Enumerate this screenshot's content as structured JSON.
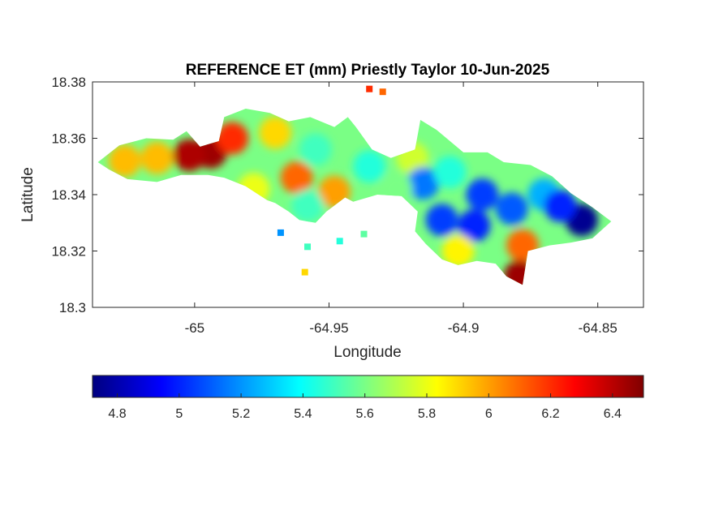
{
  "chart_data": {
    "type": "heatmap",
    "title": "REFERENCE ET (mm) Priestly Taylor 10-Jun-2025",
    "xlabel": "Longitude",
    "ylabel": "Latitude",
    "xlim": [
      -65.038,
      -64.833
    ],
    "ylim": [
      18.3,
      18.38
    ],
    "xticks": [
      -65,
      -64.95,
      -64.9,
      -64.85
    ],
    "xtick_labels": [
      "-65",
      "-64.95",
      "-64.9",
      "-64.85"
    ],
    "yticks": [
      18.3,
      18.32,
      18.34,
      18.36,
      18.38
    ],
    "ytick_labels": [
      "18.3",
      "18.32",
      "18.34",
      "18.36",
      "18.38"
    ],
    "colorbar": {
      "colormap": "jet",
      "clim": [
        4.72,
        6.5
      ],
      "ticks": [
        4.8,
        5.0,
        5.2,
        5.4,
        5.6,
        5.8,
        6.0,
        6.2,
        6.4
      ],
      "tick_labels": [
        "4.8",
        "5",
        "5.2",
        "5.4",
        "5.6",
        "5.8",
        "6",
        "6.2",
        "6.4"
      ],
      "placement": "bottom"
    },
    "island_outline_lonlat": [
      [
        -65.036,
        18.3515
      ],
      [
        -65.028,
        18.3575
      ],
      [
        -65.018,
        18.36
      ],
      [
        -65.008,
        18.3595
      ],
      [
        -65.003,
        18.3625
      ],
      [
        -64.998,
        18.357
      ],
      [
        -64.991,
        18.359
      ],
      [
        -64.989,
        18.3675
      ],
      [
        -64.981,
        18.3705
      ],
      [
        -64.972,
        18.369
      ],
      [
        -64.965,
        18.366
      ],
      [
        -64.957,
        18.3675
      ],
      [
        -64.948,
        18.364
      ],
      [
        -64.943,
        18.3675
      ],
      [
        -64.94,
        18.364
      ],
      [
        -64.934,
        18.356
      ],
      [
        -64.927,
        18.353
      ],
      [
        -64.918,
        18.356
      ],
      [
        -64.916,
        18.3665
      ],
      [
        -64.91,
        18.363
      ],
      [
        -64.9,
        18.355
      ],
      [
        -64.891,
        18.355
      ],
      [
        -64.885,
        18.3515
      ],
      [
        -64.875,
        18.3505
      ],
      [
        -64.867,
        18.3465
      ],
      [
        -64.86,
        18.3405
      ],
      [
        -64.852,
        18.3355
      ],
      [
        -64.845,
        18.3305
      ],
      [
        -64.852,
        18.3245
      ],
      [
        -64.86,
        18.323
      ],
      [
        -64.868,
        18.322
      ],
      [
        -64.876,
        18.32
      ],
      [
        -64.878,
        18.308
      ],
      [
        -64.884,
        18.311
      ],
      [
        -64.888,
        18.3155
      ],
      [
        -64.895,
        18.3165
      ],
      [
        -64.902,
        18.315
      ],
      [
        -64.908,
        18.317
      ],
      [
        -64.914,
        18.3225
      ],
      [
        -64.918,
        18.327
      ],
      [
        -64.917,
        18.334
      ],
      [
        -64.923,
        18.3395
      ],
      [
        -64.932,
        18.34
      ],
      [
        -64.941,
        18.3375
      ],
      [
        -64.944,
        18.339
      ],
      [
        -64.951,
        18.334
      ],
      [
        -64.955,
        18.33
      ],
      [
        -64.961,
        18.331
      ],
      [
        -64.965,
        18.334
      ],
      [
        -64.97,
        18.337
      ],
      [
        -64.973,
        18.338
      ],
      [
        -64.981,
        18.343
      ],
      [
        -64.989,
        18.346
      ],
      [
        -64.995,
        18.347
      ],
      [
        -65.005,
        18.347
      ],
      [
        -65.014,
        18.3445
      ],
      [
        -65.025,
        18.3455
      ],
      [
        -65.032,
        18.349
      ],
      [
        -65.036,
        18.3515
      ]
    ],
    "value_centers": [
      {
        "lon": -64.994,
        "lat": 18.355,
        "value": 6.45
      },
      {
        "lon": -65.002,
        "lat": 18.354,
        "value": 6.42
      },
      {
        "lon": -64.986,
        "lat": 18.36,
        "value": 6.2
      },
      {
        "lon": -65.014,
        "lat": 18.353,
        "value": 5.95
      },
      {
        "lon": -65.026,
        "lat": 18.352,
        "value": 5.95
      },
      {
        "lon": -64.962,
        "lat": 18.346,
        "value": 6.1
      },
      {
        "lon": -64.97,
        "lat": 18.362,
        "value": 5.9
      },
      {
        "lon": -64.948,
        "lat": 18.341,
        "value": 6.0
      },
      {
        "lon": -64.955,
        "lat": 18.356,
        "value": 5.5
      },
      {
        "lon": -64.935,
        "lat": 18.35,
        "value": 5.45
      },
      {
        "lon": -64.919,
        "lat": 18.353,
        "value": 5.75
      },
      {
        "lon": -64.915,
        "lat": 18.344,
        "value": 5.15
      },
      {
        "lon": -64.905,
        "lat": 18.348,
        "value": 5.45
      },
      {
        "lon": -64.893,
        "lat": 18.34,
        "value": 5.05
      },
      {
        "lon": -64.896,
        "lat": 18.329,
        "value": 5.0
      },
      {
        "lon": -64.908,
        "lat": 18.331,
        "value": 5.05
      },
      {
        "lon": -64.882,
        "lat": 18.335,
        "value": 5.1
      },
      {
        "lon": -64.87,
        "lat": 18.34,
        "value": 5.25
      },
      {
        "lon": -64.856,
        "lat": 18.331,
        "value": 4.75
      },
      {
        "lon": -64.864,
        "lat": 18.336,
        "value": 5.0
      },
      {
        "lon": -64.902,
        "lat": 18.32,
        "value": 5.85
      },
      {
        "lon": -64.878,
        "lat": 18.322,
        "value": 6.1
      },
      {
        "lon": -64.879,
        "lat": 18.311,
        "value": 6.45
      },
      {
        "lon": -64.925,
        "lat": 18.342,
        "value": 5.6
      },
      {
        "lon": -64.958,
        "lat": 18.336,
        "value": 5.5
      },
      {
        "lon": -64.978,
        "lat": 18.342,
        "value": 5.8
      }
    ],
    "islets_lonlat": [
      {
        "lon": -64.958,
        "lat": 18.3215,
        "value": 5.5
      },
      {
        "lon": -64.946,
        "lat": 18.3235,
        "value": 5.45
      },
      {
        "lon": -64.937,
        "lat": 18.326,
        "value": 5.55
      },
      {
        "lon": -64.959,
        "lat": 18.3125,
        "value": 5.9
      },
      {
        "lon": -64.968,
        "lat": 18.3265,
        "value": 5.2
      },
      {
        "lon": -64.935,
        "lat": 18.3775,
        "value": 6.2
      },
      {
        "lon": -64.93,
        "lat": 18.3765,
        "value": 6.1
      }
    ]
  }
}
